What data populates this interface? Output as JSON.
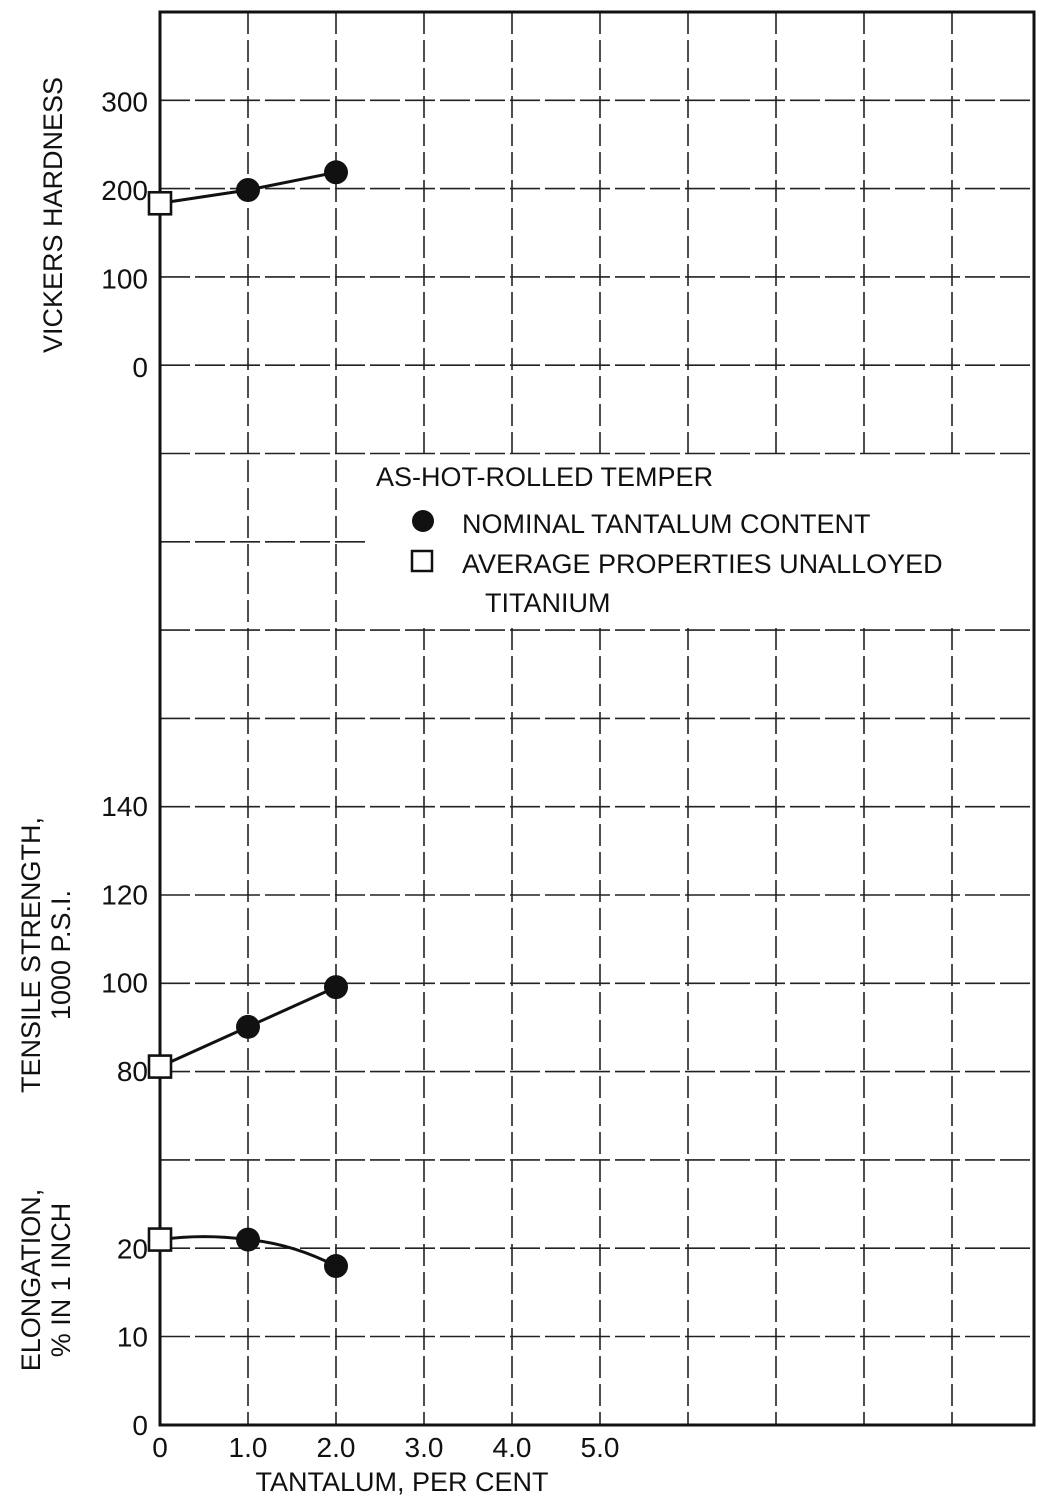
{
  "chart_data": {
    "type": "line",
    "x": [
      0,
      1.0,
      2.0
    ],
    "xlabel": "TANTALUM, PER CENT",
    "x_ticks": [
      "0",
      "1.0",
      "2.0",
      "3.0",
      "4.0",
      "5.0"
    ],
    "xlim": [
      0,
      9
    ],
    "grid": true,
    "legend": {
      "title": "AS-HOT-ROLLED TEMPER",
      "placement": "center",
      "items": [
        {
          "marker": "filled-circle",
          "label": "NOMINAL TANTALUM CONTENT"
        },
        {
          "marker": "open-square",
          "label_line1": "AVERAGE PROPERTIES UNALLOYED",
          "label_line2": "TITANIUM"
        }
      ]
    },
    "panels": [
      {
        "id": "hardness",
        "ylabel": "VICKERS HARDNESS",
        "y_ticks": [
          "0",
          "100",
          "200",
          "300"
        ],
        "y_tick_values": [
          0,
          100,
          200,
          300
        ],
        "unalloyed": {
          "x": 0,
          "y": 185
        },
        "nominal": {
          "x": [
            1.0,
            2.0
          ],
          "y": [
            200,
            220
          ]
        }
      },
      {
        "id": "tensile",
        "ylabel_line1": "TENSILE STRENGTH,",
        "ylabel_line2": "1000 P.S.I.",
        "y_ticks": [
          "80",
          "100",
          "120",
          "140"
        ],
        "y_tick_values": [
          80,
          100,
          120,
          140
        ],
        "unalloyed": {
          "x": 0,
          "y": 81
        },
        "nominal": {
          "x": [
            1.0,
            2.0
          ],
          "y": [
            90,
            99
          ]
        }
      },
      {
        "id": "elongation",
        "ylabel_line1": "ELONGATION,",
        "ylabel_line2": "% IN 1 INCH",
        "y_ticks": [
          "0",
          "10",
          "20"
        ],
        "y_tick_values": [
          0,
          10,
          20
        ],
        "unalloyed": {
          "x": 0,
          "y": 21
        },
        "nominal": {
          "x": [
            1.0,
            2.0
          ],
          "y": [
            21,
            18
          ]
        }
      }
    ],
    "colors": {
      "line": "#111111",
      "grid": "#222222",
      "marker": "#111111",
      "background": "#ffffff"
    }
  }
}
